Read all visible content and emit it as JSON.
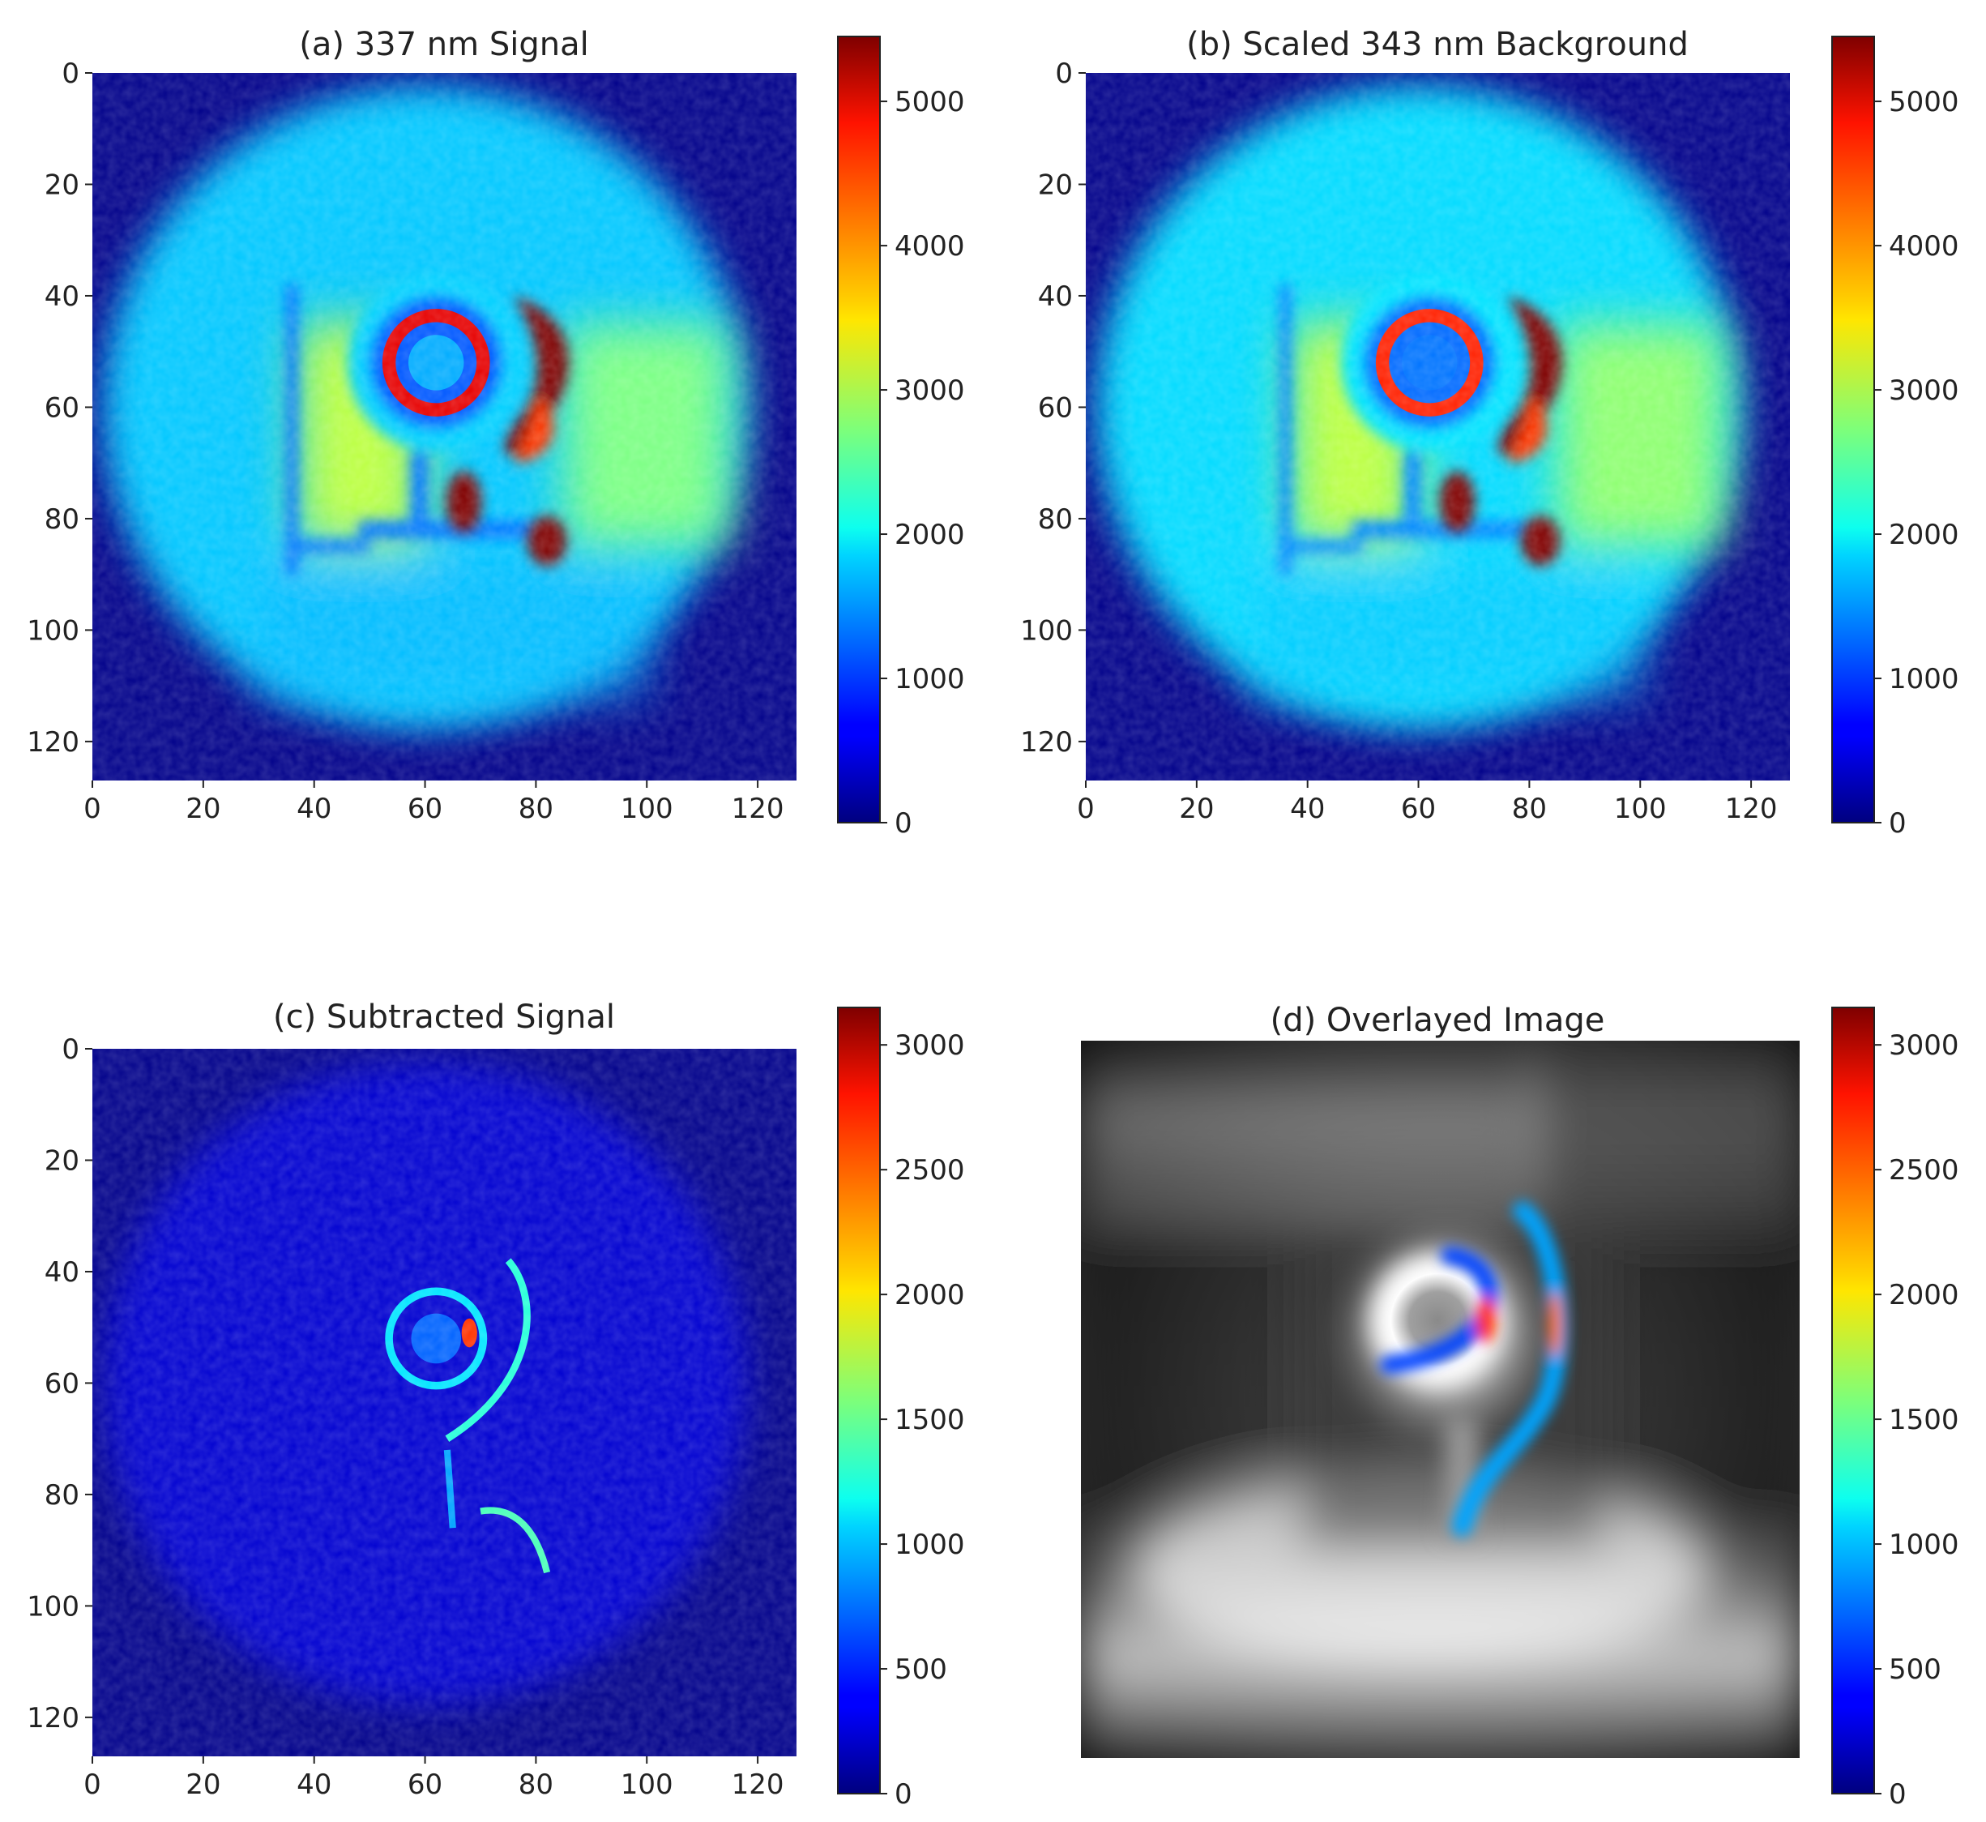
{
  "chart_data": [
    {
      "type": "heatmap",
      "id": "a",
      "title": "(a) 337 nm Signal",
      "colormap": "jet",
      "xticks": [
        0,
        20,
        40,
        60,
        80,
        100,
        120
      ],
      "yticks": [
        0,
        20,
        40,
        60,
        80,
        100,
        120
      ],
      "xlim": [
        0,
        127
      ],
      "ylim": [
        127,
        0
      ],
      "colorbar": {
        "min": 0,
        "max": 5450,
        "ticks": [
          0,
          1000,
          2000,
          3000,
          4000,
          5000
        ]
      },
      "features": {
        "outer_disk": {
          "center": [
            60,
            60
          ],
          "radius": 58,
          "value": 1750
        },
        "left_plateau": {
          "x_range": [
            37,
            60
          ],
          "y_range": [
            45,
            85
          ],
          "value": 3050
        },
        "right_plateau": {
          "x_range": [
            85,
            115
          ],
          "y_range": [
            45,
            85
          ],
          "value": 2700
        },
        "vertical_line": {
          "x": 36,
          "y_range": [
            38,
            90
          ],
          "value": 1250
        },
        "stem": {
          "x": 59,
          "y_range": [
            68,
            82
          ],
          "value": 1300
        },
        "crossbar": {
          "x_range": [
            48,
            80
          ],
          "y": 82,
          "value": 1300
        },
        "ring_halo": {
          "center": [
            62,
            52
          ],
          "radius": 16,
          "value": 1800
        },
        "dark_band": {
          "center": [
            62,
            52
          ],
          "radius": 12,
          "value": 1150
        },
        "hot_ring": {
          "center": [
            62,
            52
          ],
          "radius": 8.5,
          "value": 4900
        },
        "core": {
          "center": [
            62,
            52
          ],
          "radius": 5,
          "value": 1600
        },
        "crescent_peak": 5450,
        "lower_blob_1": {
          "center": [
            67,
            77
          ],
          "value": 5450
        },
        "lower_blob_2": {
          "center": [
            82,
            84
          ],
          "value": 5450
        }
      }
    },
    {
      "type": "heatmap",
      "id": "b",
      "title": "(b) Scaled 343 nm Background",
      "colormap": "jet",
      "xticks": [
        0,
        20,
        40,
        60,
        80,
        100,
        120
      ],
      "yticks": [
        0,
        20,
        40,
        60,
        80,
        100,
        120
      ],
      "xlim": [
        0,
        127
      ],
      "ylim": [
        127,
        0
      ],
      "colorbar": {
        "min": 0,
        "max": 5450,
        "ticks": [
          0,
          1000,
          2000,
          3000,
          4000,
          5000
        ]
      },
      "features": {
        "outer_disk": {
          "center": [
            60,
            60
          ],
          "radius": 58,
          "value": 1850
        },
        "left_plateau": {
          "x_range": [
            37,
            60
          ],
          "y_range": [
            45,
            85
          ],
          "value": 3050
        },
        "right_plateau": {
          "x_range": [
            85,
            115
          ],
          "y_range": [
            45,
            85
          ],
          "value": 2800
        },
        "vertical_line": {
          "x": 36,
          "y_range": [
            38,
            90
          ],
          "value": 1350
        },
        "stem": {
          "x": 59,
          "y_range": [
            68,
            82
          ],
          "value": 1400
        },
        "crossbar": {
          "x_range": [
            48,
            80
          ],
          "y": 82,
          "value": 1400
        },
        "ring_halo": {
          "center": [
            62,
            52
          ],
          "radius": 16,
          "value": 1900
        },
        "dark_band": {
          "center": [
            62,
            52
          ],
          "radius": 12,
          "value": 1250
        },
        "hot_ring": {
          "center": [
            62,
            52
          ],
          "radius": 8.5,
          "value": 4600
        },
        "core": {
          "center": [
            62,
            52
          ],
          "radius": 5,
          "value": 1300
        },
        "crescent_peak": 5450,
        "lower_blob_1": {
          "center": [
            67,
            77
          ],
          "value": 5450
        },
        "lower_blob_2": {
          "center": [
            82,
            84
          ],
          "value": 5450
        }
      }
    },
    {
      "type": "heatmap",
      "id": "c",
      "title": "(c) Subtracted Signal",
      "colormap": "jet",
      "xticks": [
        0,
        20,
        40,
        60,
        80,
        100,
        120
      ],
      "yticks": [
        0,
        20,
        40,
        60,
        80,
        100,
        120
      ],
      "xlim": [
        0,
        127
      ],
      "ylim": [
        127,
        0
      ],
      "colorbar": {
        "min": 0,
        "max": 3150,
        "ticks": [
          0,
          500,
          1000,
          1500,
          2000,
          2500,
          3000
        ]
      },
      "features": {
        "outer_disk": {
          "center": [
            60,
            60
          ],
          "radius": 58,
          "value": 250
        },
        "thin_ring": {
          "center": [
            62,
            52
          ],
          "radius": 8.5,
          "value": 1100
        },
        "ring_peak": {
          "center": [
            68,
            51
          ],
          "value": 2600
        },
        "arc": {
          "from": [
            75,
            38
          ],
          "to": [
            64,
            70
          ],
          "value": 1300
        },
        "stem_trace": {
          "x_range": [
            63,
            66
          ],
          "y_range": [
            72,
            86
          ],
          "value": 900
        },
        "lower_trace": {
          "from": [
            70,
            83
          ],
          "to": [
            82,
            94
          ],
          "value": 1400
        }
      }
    },
    {
      "type": "heatmap",
      "id": "d",
      "title": "(d) Overlayed Image",
      "colormap": "gray + jet overlay",
      "colorbar": {
        "min": 0,
        "max": 3150,
        "ticks": [
          0,
          500,
          1000,
          1500,
          2000,
          2500,
          3000
        ]
      }
    }
  ]
}
